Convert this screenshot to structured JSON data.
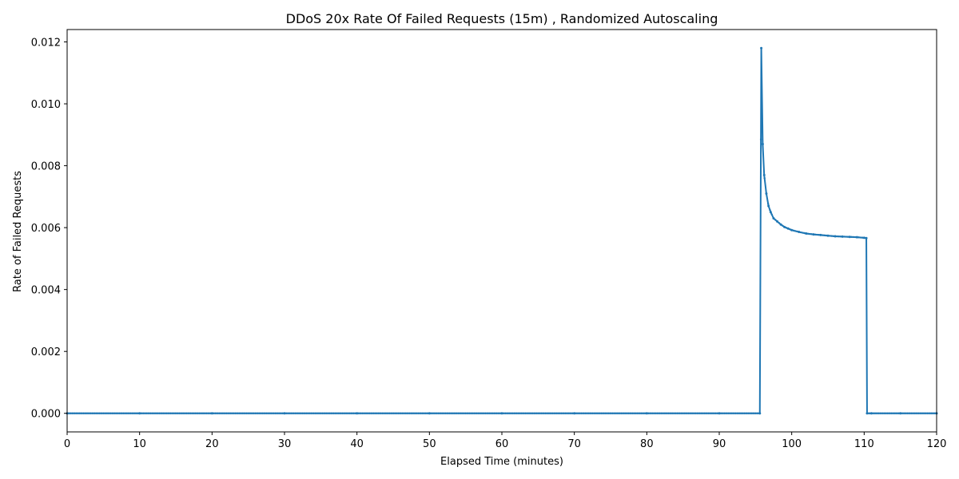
{
  "chart_data": {
    "type": "line",
    "title": "DDoS 20x Rate Of Failed Requests (15m) , Randomized Autoscaling",
    "xlabel": "Elapsed Time (minutes)",
    "ylabel": "Rate of Failed Requests",
    "xlim": [
      0,
      120
    ],
    "ylim": [
      -0.0006,
      0.0124
    ],
    "xticks": [
      0,
      10,
      20,
      30,
      40,
      50,
      60,
      70,
      80,
      90,
      100,
      110,
      120
    ],
    "xtick_labels": [
      "0",
      "10",
      "20",
      "30",
      "40",
      "50",
      "60",
      "70",
      "80",
      "90",
      "100",
      "110",
      "120"
    ],
    "yticks": [
      0,
      0.002,
      0.004,
      0.006,
      0.008,
      0.01,
      0.012
    ],
    "ytick_labels": [
      "0.000",
      "0.002",
      "0.004",
      "0.006",
      "0.008",
      "0.010",
      "0.012"
    ],
    "grid": false,
    "color": "#1f77b4",
    "series": [
      {
        "x": [
          0,
          10,
          20,
          30,
          40,
          50,
          60,
          70,
          80,
          90,
          95.6,
          95.8,
          96.0,
          96.2,
          96.5,
          96.8,
          97.1,
          97.5,
          98.0,
          98.5,
          99.0,
          99.5,
          100.0,
          101.0,
          102.0,
          103.0,
          104.0,
          105.0,
          106.0,
          107.0,
          108.0,
          109.0,
          110.0,
          110.3,
          110.4,
          111,
          115,
          120
        ],
        "y": [
          0,
          0,
          0,
          0,
          0,
          0,
          0,
          0,
          0,
          0,
          0,
          0.0118,
          0.0087,
          0.0077,
          0.0071,
          0.0067,
          0.0065,
          0.0063,
          0.0062,
          0.0061,
          0.00602,
          0.00597,
          0.00592,
          0.00586,
          0.00581,
          0.00578,
          0.00576,
          0.00574,
          0.00572,
          0.00571,
          0.0057,
          0.00569,
          0.00567,
          0.00566,
          0,
          0,
          0,
          0
        ]
      }
    ]
  }
}
